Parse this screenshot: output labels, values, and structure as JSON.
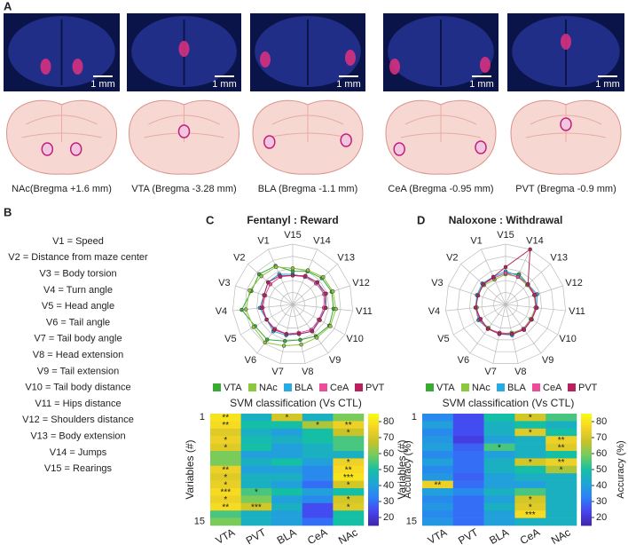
{
  "panel_labels": [
    "A",
    "B",
    "C",
    "D"
  ],
  "panel_a": {
    "scale_bar": "1 mm",
    "captions": [
      "NAc(Bregma +1.6 mm)",
      "VTA (Bregma -3.28 mm)",
      "BLA (Bregma -1.1 mm)",
      "CeA (Bregma -0.95 mm)",
      "PVT (Bregma -0.9 mm)"
    ]
  },
  "panel_b": {
    "variables": [
      "V1 = Speed",
      "V2 = Distance from maze center",
      "V3 = Body torsion",
      "V4 = Turn angle",
      "V5 = Head angle",
      "V6 = Tail angle",
      "V7 = Tail body angle",
      "V8 = Head extension",
      "V9 = Tail extension",
      "V10 = Tail body distance",
      "V11 = Hips distance",
      "V12 = Shoulders distance",
      "V13 = Body extension",
      "V14 = Jumps",
      "V15 = Rearings"
    ]
  },
  "chart_data": [
    {
      "type": "radar",
      "title": "Fentanyl : Reward",
      "axes": [
        "V1",
        "V2",
        "V3",
        "V4",
        "V5",
        "V6",
        "V7",
        "V8",
        "V9",
        "V10",
        "V11",
        "V12",
        "V13",
        "V14",
        "V15"
      ],
      "rlim": [
        0,
        1
      ],
      "series": [
        {
          "name": "VTA",
          "color": "#3aa935",
          "values": [
            0.7,
            0.75,
            0.72,
            0.85,
            0.72,
            0.72,
            0.62,
            0.6,
            0.65,
            0.7,
            0.68,
            0.68,
            0.65,
            0.6,
            0.55
          ]
        },
        {
          "name": "NAc",
          "color": "#8dc63f",
          "values": [
            0.68,
            0.7,
            0.75,
            0.78,
            0.75,
            0.78,
            0.7,
            0.68,
            0.68,
            0.72,
            0.72,
            0.7,
            0.68,
            0.62,
            0.6
          ]
        },
        {
          "name": "BLA",
          "color": "#29abe2",
          "values": [
            0.55,
            0.55,
            0.5,
            0.55,
            0.5,
            0.55,
            0.52,
            0.5,
            0.55,
            0.5,
            0.55,
            0.55,
            0.55,
            0.5,
            0.5
          ]
        },
        {
          "name": "CeA",
          "color": "#ec4d9b",
          "values": [
            0.5,
            0.5,
            0.48,
            0.5,
            0.5,
            0.5,
            0.5,
            0.48,
            0.52,
            0.5,
            0.52,
            0.55,
            0.52,
            0.5,
            0.48
          ]
        },
        {
          "name": "PVT",
          "color": "#b5225f",
          "values": [
            0.52,
            0.55,
            0.5,
            0.52,
            0.5,
            0.52,
            0.5,
            0.5,
            0.55,
            0.52,
            0.55,
            0.58,
            0.55,
            0.52,
            0.48
          ]
        }
      ]
    },
    {
      "type": "heatmap",
      "title": "SVM classification (Vs CTL)",
      "y_label": "Variables (#)",
      "rows": [
        "1",
        null,
        null,
        null,
        null,
        null,
        null,
        null,
        null,
        null,
        null,
        null,
        null,
        null,
        "15"
      ],
      "columns": [
        "VTA",
        "PVT",
        "BLA",
        "CeA",
        "NAc"
      ],
      "values": [
        [
          80,
          45,
          70,
          45,
          60
        ],
        [
          78,
          50,
          50,
          65,
          75
        ],
        [
          72,
          45,
          40,
          50,
          68
        ],
        [
          75,
          48,
          45,
          50,
          55
        ],
        [
          72,
          50,
          40,
          45,
          55
        ],
        [
          60,
          40,
          40,
          45,
          45
        ],
        [
          60,
          45,
          50,
          40,
          75
        ],
        [
          75,
          40,
          40,
          35,
          78
        ],
        [
          72,
          45,
          45,
          35,
          80
        ],
        [
          74,
          45,
          40,
          30,
          70
        ],
        [
          78,
          55,
          50,
          40,
          50
        ],
        [
          75,
          60,
          40,
          35,
          70
        ],
        [
          78,
          70,
          45,
          25,
          72
        ],
        [
          55,
          45,
          40,
          25,
          50
        ],
        [
          60,
          45,
          40,
          30,
          50
        ]
      ],
      "annotations": [
        [
          "**",
          null,
          "*",
          null,
          null
        ],
        [
          "**",
          null,
          null,
          "*",
          "**"
        ],
        [
          null,
          null,
          null,
          null,
          "*"
        ],
        [
          "*",
          null,
          null,
          null,
          null
        ],
        [
          "*",
          null,
          null,
          null,
          null
        ],
        [
          null,
          null,
          null,
          null,
          null
        ],
        [
          null,
          null,
          null,
          null,
          "*"
        ],
        [
          "**",
          null,
          null,
          null,
          "**"
        ],
        [
          "*",
          null,
          null,
          null,
          "***"
        ],
        [
          "*",
          null,
          null,
          null,
          "*"
        ],
        [
          "***",
          "*",
          null,
          null,
          null
        ],
        [
          "*",
          null,
          null,
          null,
          "*"
        ],
        [
          "**",
          "***",
          null,
          null,
          "*"
        ],
        [
          null,
          null,
          null,
          null,
          null
        ],
        [
          null,
          null,
          null,
          null,
          null
        ]
      ],
      "colorbar": {
        "label": "Accuracy (%)",
        "lim": [
          15,
          85
        ],
        "ticks": [
          20,
          30,
          40,
          50,
          60,
          70,
          80
        ]
      },
      "colormap": [
        "#3e26a8",
        "#4743f0",
        "#2d7ff8",
        "#1fa5d6",
        "#15bfa6",
        "#6fcc62",
        "#c6c229",
        "#f5d325",
        "#f9fb15"
      ]
    },
    {
      "type": "radar",
      "title": "Naloxone : Withdrawal",
      "axes": [
        "V1",
        "V2",
        "V3",
        "V4",
        "V5",
        "V6",
        "V7",
        "V8",
        "V9",
        "V10",
        "V11",
        "V12",
        "V13",
        "V14",
        "V15"
      ],
      "rlim": [
        0,
        1
      ],
      "series": [
        {
          "name": "VTA",
          "color": "#3aa935",
          "values": [
            0.48,
            0.5,
            0.48,
            0.5,
            0.48,
            0.5,
            0.48,
            0.5,
            0.52,
            0.5,
            0.5,
            0.52,
            0.5,
            0.55,
            0.52
          ]
        },
        {
          "name": "NAc",
          "color": "#8dc63f",
          "values": [
            0.45,
            0.48,
            0.5,
            0.48,
            0.5,
            0.48,
            0.5,
            0.48,
            0.5,
            0.48,
            0.5,
            0.5,
            0.48,
            0.5,
            0.5
          ]
        },
        {
          "name": "BLA",
          "color": "#29abe2",
          "values": [
            0.5,
            0.52,
            0.5,
            0.5,
            0.52,
            0.5,
            0.5,
            0.52,
            0.5,
            0.5,
            0.52,
            0.55,
            0.5,
            0.52,
            0.55
          ]
        },
        {
          "name": "CeA",
          "color": "#ec4d9b",
          "values": [
            0.48,
            0.5,
            0.48,
            0.5,
            0.5,
            0.5,
            0.48,
            0.5,
            0.5,
            0.5,
            0.5,
            0.52,
            0.5,
            0.5,
            0.52
          ]
        },
        {
          "name": "PVT",
          "color": "#b5225f",
          "values": [
            0.5,
            0.5,
            0.48,
            0.5,
            0.48,
            0.5,
            0.5,
            0.5,
            0.52,
            0.5,
            0.52,
            0.5,
            0.5,
            1.0,
            0.62
          ]
        }
      ]
    },
    {
      "type": "heatmap",
      "title": "SVM classification (Vs CTL)",
      "y_label": "Variables (#)",
      "rows": [
        "1",
        null,
        null,
        null,
        null,
        null,
        null,
        null,
        null,
        null,
        null,
        null,
        null,
        null,
        "15"
      ],
      "columns": [
        "VTA",
        "PVT",
        "BLA",
        "CeA",
        "NAc"
      ],
      "values": [
        [
          35,
          25,
          50,
          70,
          55
        ],
        [
          40,
          25,
          45,
          50,
          45
        ],
        [
          35,
          25,
          45,
          72,
          50
        ],
        [
          38,
          22,
          40,
          45,
          75
        ],
        [
          40,
          28,
          55,
          45,
          72
        ],
        [
          35,
          30,
          40,
          45,
          50
        ],
        [
          40,
          30,
          45,
          70,
          75
        ],
        [
          35,
          30,
          45,
          50,
          65
        ],
        [
          38,
          28,
          40,
          45,
          45
        ],
        [
          75,
          30,
          40,
          40,
          45
        ],
        [
          40,
          35,
          45,
          55,
          45
        ],
        [
          35,
          30,
          40,
          70,
          45
        ],
        [
          38,
          30,
          45,
          72,
          45
        ],
        [
          35,
          30,
          40,
          78,
          45
        ],
        [
          38,
          30,
          40,
          45,
          45
        ]
      ],
      "annotations": [
        [
          null,
          null,
          null,
          "*",
          null
        ],
        [
          null,
          null,
          null,
          null,
          null
        ],
        [
          null,
          null,
          null,
          "*",
          null
        ],
        [
          null,
          null,
          null,
          null,
          "**"
        ],
        [
          null,
          null,
          "*",
          null,
          "**"
        ],
        [
          null,
          null,
          null,
          null,
          null
        ],
        [
          null,
          null,
          null,
          "*",
          "**"
        ],
        [
          null,
          null,
          null,
          null,
          "*"
        ],
        [
          null,
          null,
          null,
          null,
          null
        ],
        [
          "**",
          null,
          null,
          null,
          null
        ],
        [
          null,
          null,
          null,
          null,
          null
        ],
        [
          null,
          null,
          null,
          "*",
          null
        ],
        [
          null,
          null,
          null,
          "*",
          null
        ],
        [
          null,
          null,
          null,
          "***",
          null
        ],
        [
          null,
          null,
          null,
          null,
          null
        ]
      ],
      "colorbar": {
        "label": "Accuracy (%)",
        "lim": [
          15,
          85
        ],
        "ticks": [
          20,
          30,
          40,
          50,
          60,
          70,
          80
        ]
      },
      "colormap": [
        "#3e26a8",
        "#4743f0",
        "#2d7ff8",
        "#1fa5d6",
        "#15bfa6",
        "#6fcc62",
        "#c6c229",
        "#f5d325",
        "#f9fb15"
      ]
    }
  ]
}
